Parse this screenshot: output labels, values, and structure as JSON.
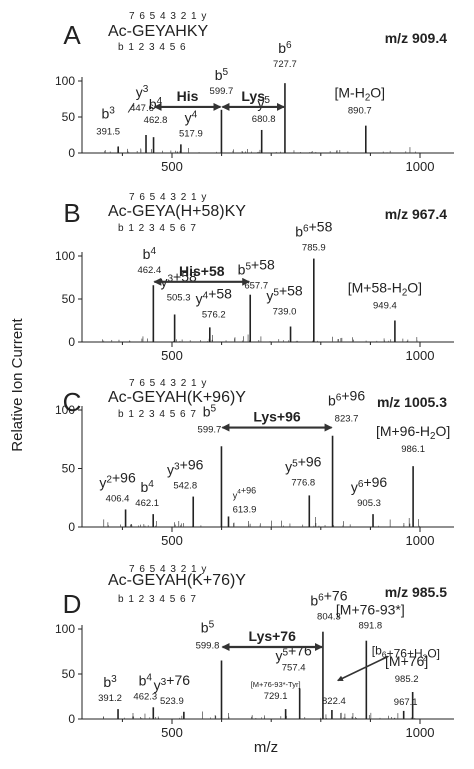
{
  "figure": {
    "ylabel": "Relative Ion Current",
    "xlabel": "m/z"
  },
  "chart_data": [
    {
      "type": "bar",
      "panel": "A",
      "mz_label": "m/z 909.4",
      "seq_top": "7 6 5 4 3 2 1 y",
      "sequence": "Ac-GEYAHKY",
      "seq_bottom": "b 1 2 3 4 5 6",
      "xlim": [
        330,
        1080
      ],
      "ylim": [
        0,
        100
      ],
      "xticks": [
        "500",
        "1000"
      ],
      "yticks": [
        "0",
        "50",
        "100"
      ],
      "peaks": [
        {
          "mz": 391.5,
          "value": 9,
          "name": "b3",
          "mzlabel": "391.5"
        },
        {
          "mz": 447.6,
          "value": 25,
          "name": "y3",
          "mzlabel": "447.6"
        },
        {
          "mz": 462.8,
          "value": 22,
          "name": "b4",
          "mzlabel": "462.8"
        },
        {
          "mz": 517.9,
          "value": 12,
          "name": "y4",
          "mzlabel": "517.9"
        },
        {
          "mz": 599.7,
          "value": 60,
          "name": "b5",
          "mzlabel": "599.7"
        },
        {
          "mz": 680.8,
          "value": 32,
          "name": "y5",
          "mzlabel": "680.8"
        },
        {
          "mz": 727.7,
          "value": 97,
          "name": "b6",
          "mzlabel": "727.7"
        },
        {
          "mz": 890.7,
          "value": 38,
          "name": "[M-H2O]",
          "mzlabel": "890.7"
        }
      ],
      "spans": [
        {
          "from": 462.8,
          "to": 599.7,
          "label": "His"
        },
        {
          "from": 599.7,
          "to": 727.7,
          "label": "Lys"
        }
      ]
    },
    {
      "type": "bar",
      "panel": "B",
      "mz_label": "m/z 967.4",
      "seq_top": "7 6 5 4 3 2 1 y",
      "sequence": "Ac-GEYA(H+58)KY",
      "seq_bottom": "b 1 2 3 4 5 6 7",
      "xlim": [
        330,
        1080
      ],
      "ylim": [
        0,
        100
      ],
      "xticks": [
        "500",
        "1000"
      ],
      "yticks": [
        "0",
        "50",
        "100"
      ],
      "peaks": [
        {
          "mz": 462.4,
          "value": 66,
          "name": "b4",
          "mzlabel": "462.4"
        },
        {
          "mz": 505.3,
          "value": 32,
          "name": "y3+58",
          "mzlabel": "505.3"
        },
        {
          "mz": 576.2,
          "value": 17,
          "name": "y4+58",
          "mzlabel": "576.2"
        },
        {
          "mz": 657.7,
          "value": 55,
          "name": "b5+58",
          "mzlabel": "657.7"
        },
        {
          "mz": 739.0,
          "value": 18,
          "name": "y5+58",
          "mzlabel": "739.0"
        },
        {
          "mz": 785.9,
          "value": 97,
          "name": "b6+58",
          "mzlabel": "785.9"
        },
        {
          "mz": 949.4,
          "value": 25,
          "name": "[M+58-H2O]",
          "mzlabel": "949.4"
        }
      ],
      "spans": [
        {
          "from": 462.4,
          "to": 657.7,
          "label": "His+58"
        }
      ]
    },
    {
      "type": "bar",
      "panel": "C",
      "mz_label": "m/z 1005.3",
      "seq_top": "7 6 5 4 3 2 1 y",
      "sequence": "Ac-GEYAH(K+96)Y",
      "seq_bottom": "b 1 2 3 4 5 6 7",
      "xlim": [
        330,
        1080
      ],
      "ylim": [
        0,
        100
      ],
      "xticks": [
        "500",
        "1000"
      ],
      "yticks": [
        "0",
        "50",
        "100"
      ],
      "peaks": [
        {
          "mz": 406.4,
          "value": 15,
          "name": "y2+96",
          "mzlabel": "406.4"
        },
        {
          "mz": 462.1,
          "value": 11,
          "name": "b4",
          "mzlabel": "462.1"
        },
        {
          "mz": 542.8,
          "value": 26,
          "name": "y3+96",
          "mzlabel": "542.8"
        },
        {
          "mz": 599.7,
          "value": 69,
          "name": "b5",
          "mzlabel": "599.7"
        },
        {
          "mz": 613.9,
          "value": 9,
          "name": "y4+96",
          "mzlabel": "613.9"
        },
        {
          "mz": 776.8,
          "value": 27,
          "name": "y5+96",
          "mzlabel": "776.8"
        },
        {
          "mz": 823.7,
          "value": 78,
          "name": "b6+96",
          "mzlabel": "823.7"
        },
        {
          "mz": 905.3,
          "value": 11,
          "name": "y6+96",
          "mzlabel": "905.3"
        },
        {
          "mz": 986.1,
          "value": 52,
          "name": "[M+96-H2O]",
          "mzlabel": "986.1"
        }
      ],
      "spans": [
        {
          "from": 599.7,
          "to": 823.7,
          "label": "Lys+96"
        }
      ]
    },
    {
      "type": "bar",
      "panel": "D",
      "mz_label": "m/z 985.5",
      "seq_top": "7 6 5 4 3 2 1 y",
      "sequence": "Ac-GEYAH(K+76)Y",
      "seq_bottom": "b 1 2 3 4 5 6 7",
      "xlim": [
        330,
        1080
      ],
      "ylim": [
        0,
        100
      ],
      "xticks": [
        "500",
        "1000"
      ],
      "yticks": [
        "0",
        "50",
        "100"
      ],
      "peaks": [
        {
          "mz": 391.2,
          "value": 11,
          "name": "b3",
          "mzlabel": "391.2"
        },
        {
          "mz": 462.3,
          "value": 13,
          "name": "b4",
          "mzlabel": "462.3"
        },
        {
          "mz": 523.9,
          "value": 8,
          "name": "y3+76",
          "mzlabel": "523.9"
        },
        {
          "mz": 599.8,
          "value": 65,
          "name": "b5",
          "mzlabel": "599.8"
        },
        {
          "mz": 729.1,
          "value": 11,
          "name": "[M+76-93*-Tyr]",
          "mzlabel": "729.1"
        },
        {
          "mz": 757.4,
          "value": 34,
          "name": "y5+76",
          "mzlabel": "757.4"
        },
        {
          "mz": 804.3,
          "value": 97,
          "name": "b6+76",
          "mzlabel": "804.3"
        },
        {
          "mz": 822.4,
          "value": 10,
          "name": "",
          "mzlabel": "822.4"
        },
        {
          "mz": 891.8,
          "value": 87,
          "name": "[M+76-93*]",
          "mzlabel": "891.8"
        },
        {
          "mz": 967.1,
          "value": 9,
          "name": "",
          "mzlabel": "967.1"
        },
        {
          "mz": 985.2,
          "value": 30,
          "name": "[M+76]",
          "mzlabel": "985.2"
        }
      ],
      "spans": [
        {
          "from": 599.8,
          "to": 804.3,
          "label": "Lys+76"
        }
      ],
      "callouts": [
        {
          "text": "[b6+76+H2O]",
          "to": 822.4
        }
      ]
    }
  ]
}
